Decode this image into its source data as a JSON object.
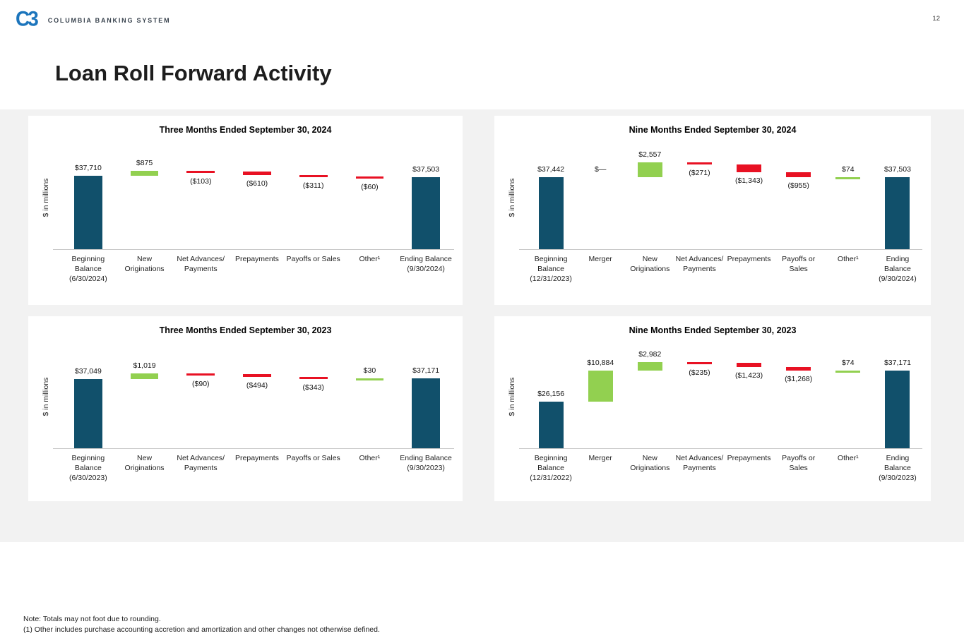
{
  "page": {
    "number": "12"
  },
  "header": {
    "logo_monogram": "C3",
    "logo_text": "COLUMBIA BANKING SYSTEM",
    "title": "Loan Roll Forward Activity"
  },
  "notes": {
    "line1": "Note: Totals may not foot due to rounding.",
    "line2": "(1)  Other includes purchase accounting accretion and amortization and other changes not otherwise defined."
  },
  "colors": {
    "total_bar": "#11506B",
    "increase_bar": "#92D050",
    "decrease_bar": "#E81123",
    "logo_blue": "#1C75BC",
    "page_bg": "#F2F2F2",
    "panel_bg": "#FFFFFF",
    "axis_line": "#C8C8C8"
  },
  "chart_data": [
    {
      "type": "bar",
      "subtype": "waterfall",
      "title": "Three Months Ended September 30, 2024",
      "ylabel": "$ in millions",
      "ylim": [
        25000,
        42500
      ],
      "grid": false,
      "legend": "none",
      "categories": [
        "Beginning Balance (6/30/2024)",
        "New Originations",
        "Net Advances/ Payments",
        "Prepayments",
        "Payoffs or Sales",
        "Other¹",
        "Ending Balance (9/30/2024)"
      ],
      "steps": [
        {
          "category": "Beginning Balance (6/30/2024)",
          "value": 37710,
          "label": "$37,710",
          "kind": "total"
        },
        {
          "category": "New Originations",
          "value": 875,
          "label": "$875",
          "kind": "increase"
        },
        {
          "category": "Net Advances/ Payments",
          "value": -103,
          "label": "($103)",
          "kind": "decrease"
        },
        {
          "category": "Prepayments",
          "value": -610,
          "label": "($610)",
          "kind": "decrease"
        },
        {
          "category": "Payoffs or Sales",
          "value": -311,
          "label": "($311)",
          "kind": "decrease"
        },
        {
          "category": "Other¹",
          "value": -60,
          "label": "($60)",
          "kind": "decrease"
        },
        {
          "category": "Ending Balance (9/30/2024)",
          "value": 37503,
          "label": "$37,503",
          "kind": "total"
        }
      ]
    },
    {
      "type": "bar",
      "subtype": "waterfall",
      "title": "Nine Months Ended September 30, 2024",
      "ylabel": "$ in millions",
      "ylim": [
        25000,
        42500
      ],
      "grid": false,
      "legend": "none",
      "categories": [
        "Beginning Balance (12/31/2023)",
        "Merger",
        "New Originations",
        "Net Advances/ Payments",
        "Prepayments",
        "Payoffs or Sales",
        "Other¹",
        "Ending Balance (9/30/2024)"
      ],
      "steps": [
        {
          "category": "Beginning Balance (12/31/2023)",
          "value": 37442,
          "label": "$37,442",
          "kind": "total"
        },
        {
          "category": "Merger",
          "value": 0,
          "label": "$—",
          "kind": "none"
        },
        {
          "category": "New Originations",
          "value": 2557,
          "label": "$2,557",
          "kind": "increase"
        },
        {
          "category": "Net Advances/ Payments",
          "value": -271,
          "label": "($271)",
          "kind": "decrease"
        },
        {
          "category": "Prepayments",
          "value": -1343,
          "label": "($1,343)",
          "kind": "decrease"
        },
        {
          "category": "Payoffs or Sales",
          "value": -955,
          "label": "($955)",
          "kind": "decrease"
        },
        {
          "category": "Other¹",
          "value": 74,
          "label": "$74",
          "kind": "increase"
        },
        {
          "category": "Ending Balance (9/30/2024)",
          "value": 37503,
          "label": "$37,503",
          "kind": "total"
        }
      ]
    },
    {
      "type": "bar",
      "subtype": "waterfall",
      "title": "Three Months Ended September 30, 2023",
      "ylabel": "$ in millions",
      "ylim": [
        25000,
        42500
      ],
      "grid": false,
      "legend": "none",
      "categories": [
        "Beginning Balance (6/30/2023)",
        "New Originations",
        "Net Advances/ Payments",
        "Prepayments",
        "Payoffs or Sales",
        "Other¹",
        "Ending Balance (9/30/2023)"
      ],
      "steps": [
        {
          "category": "Beginning Balance (6/30/2023)",
          "value": 37049,
          "label": "$37,049",
          "kind": "total"
        },
        {
          "category": "New Originations",
          "value": 1019,
          "label": "$1,019",
          "kind": "increase"
        },
        {
          "category": "Net Advances/ Payments",
          "value": -90,
          "label": "($90)",
          "kind": "decrease"
        },
        {
          "category": "Prepayments",
          "value": -494,
          "label": "($494)",
          "kind": "decrease"
        },
        {
          "category": "Payoffs or Sales",
          "value": -343,
          "label": "($343)",
          "kind": "decrease"
        },
        {
          "category": "Other¹",
          "value": 30,
          "label": "$30",
          "kind": "increase"
        },
        {
          "category": "Ending Balance (9/30/2023)",
          "value": 37171,
          "label": "$37,171",
          "kind": "total"
        }
      ]
    },
    {
      "type": "bar",
      "subtype": "waterfall",
      "title": "Nine Months Ended September 30, 2023",
      "ylabel": "$ in millions",
      "ylim": [
        10000,
        45000
      ],
      "grid": false,
      "legend": "none",
      "categories": [
        "Beginning Balance (12/31/2022)",
        "Merger",
        "New Originations",
        "Net Advances/ Payments",
        "Prepayments",
        "Payoffs or Sales",
        "Other¹",
        "Ending Balance (9/30/2023)"
      ],
      "steps": [
        {
          "category": "Beginning Balance (12/31/2022)",
          "value": 26156,
          "label": "$26,156",
          "kind": "total"
        },
        {
          "category": "Merger",
          "value": 10884,
          "label": "$10,884",
          "kind": "increase"
        },
        {
          "category": "New Originations",
          "value": 2982,
          "label": "$2,982",
          "kind": "increase"
        },
        {
          "category": "Net Advances/ Payments",
          "value": -235,
          "label": "($235)",
          "kind": "decrease"
        },
        {
          "category": "Prepayments",
          "value": -1423,
          "label": "($1,423)",
          "kind": "decrease"
        },
        {
          "category": "Payoffs or Sales",
          "value": -1268,
          "label": "($1,268)",
          "kind": "decrease"
        },
        {
          "category": "Other¹",
          "value": 74,
          "label": "$74",
          "kind": "increase"
        },
        {
          "category": "Ending Balance (9/30/2023)",
          "value": 37171,
          "label": "$37,171",
          "kind": "total"
        }
      ]
    }
  ]
}
